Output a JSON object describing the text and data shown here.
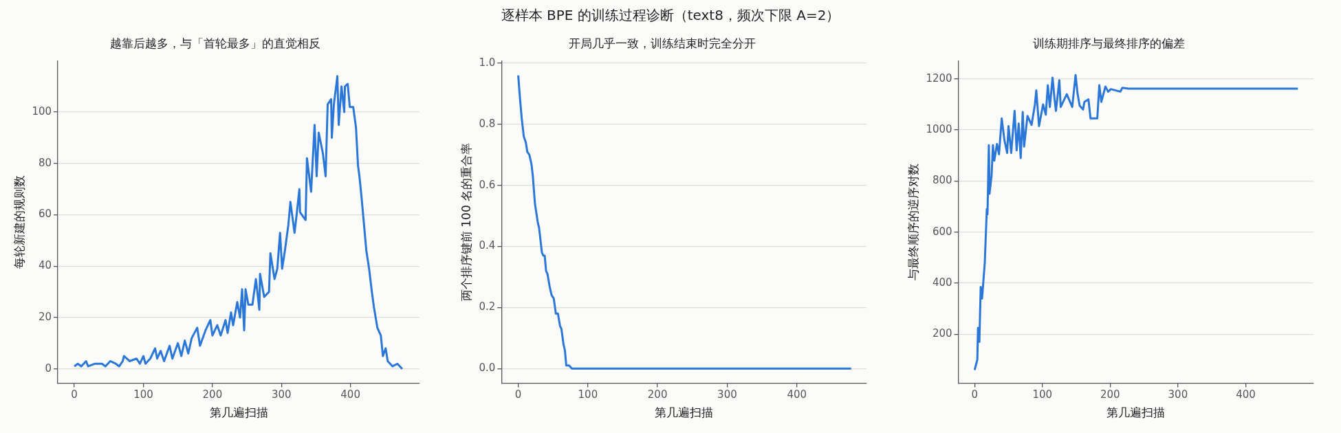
{
  "chart_data": [
    {
      "type": "line",
      "title": "越靠后越多，与「首轮最多」的直觉相反",
      "annotations": [
        "逐样本 BPE 的训练过程诊断（text8，频次下限 A=2）"
      ],
      "xlabel": "第几遍扫描",
      "ylabel": "每轮新建的规则数",
      "xlim": [
        -24,
        500
      ],
      "ylim": [
        -5.6,
        120
      ],
      "xticks": [
        0,
        100,
        200,
        300,
        400
      ],
      "yticks": [
        0,
        20,
        40,
        60,
        80,
        100
      ],
      "grid": "y",
      "series": [
        {
          "color": "#2b77d8",
          "x": [
            0,
            5,
            10,
            17,
            20,
            30,
            40,
            45,
            52,
            60,
            65,
            70,
            72,
            80,
            90,
            95,
            100,
            103,
            110,
            117,
            120,
            125,
            130,
            138,
            142,
            150,
            155,
            160,
            165,
            170,
            178,
            182,
            190,
            197,
            200,
            207,
            212,
            219,
            222,
            227,
            230,
            236,
            240,
            243,
            246,
            248,
            252,
            258,
            263,
            268,
            269,
            275,
            282,
            284,
            290,
            294,
            298,
            301,
            305,
            310,
            313,
            319,
            322,
            326,
            327,
            335,
            337,
            343,
            348,
            351,
            354,
            360,
            364,
            367,
            372,
            373,
            376,
            381,
            383,
            387,
            391,
            392,
            396,
            399,
            404,
            408,
            411,
            413,
            416,
            420,
            423,
            427,
            431,
            434,
            439,
            444,
            447,
            451,
            454,
            461,
            468,
            475
          ],
          "values": [
            1,
            2,
            1,
            3,
            1,
            2,
            2,
            1,
            3,
            2,
            1,
            3,
            5,
            3,
            4,
            2,
            5,
            2,
            4,
            8,
            4,
            7,
            3,
            9,
            4,
            10,
            5,
            11,
            6,
            12,
            16,
            9,
            15,
            19,
            13,
            17,
            13,
            19,
            14,
            22,
            17,
            26,
            20,
            31,
            15,
            31,
            25,
            25,
            35,
            23,
            37,
            28,
            30,
            45,
            35,
            39,
            53,
            39,
            46,
            56,
            65,
            53,
            60,
            70,
            61,
            58,
            82,
            69,
            95,
            75,
            92,
            84,
            75,
            103,
            105,
            90,
            103,
            114,
            95,
            110,
            100,
            110,
            111,
            102,
            102,
            94,
            79,
            75,
            67,
            55,
            46,
            39,
            30,
            24,
            16,
            13,
            5,
            8,
            3,
            1,
            2,
            0
          ]
        }
      ]
    },
    {
      "type": "line",
      "title": "开局几乎一致，训练结束时完全分开",
      "xlabel": "第几遍扫描",
      "ylabel": "两个排序键前 100 名的重合率",
      "xlim": [
        -24,
        500
      ],
      "ylim": [
        -0.048,
        1.008
      ],
      "xticks": [
        0,
        100,
        200,
        300,
        400
      ],
      "yticks": [
        {
          "value": 0,
          "label": "0.0"
        },
        {
          "value": 0.2,
          "label": "0.2"
        },
        {
          "value": 0.4,
          "label": "0.4"
        },
        {
          "value": 0.6,
          "label": "0.6"
        },
        {
          "value": 0.8,
          "label": "0.8"
        },
        {
          "value": 1,
          "label": "1.0"
        }
      ],
      "grid": "y",
      "series": [
        {
          "color": "#2b77d8",
          "x": [
            0,
            2,
            5,
            8,
            11,
            13,
            16,
            19,
            21,
            24,
            28,
            30,
            34,
            36,
            38,
            40,
            42,
            45,
            48,
            51,
            54,
            57,
            60,
            62,
            65,
            67,
            69,
            73,
            77,
            478
          ],
          "values": [
            0.96,
            0.9,
            0.82,
            0.76,
            0.74,
            0.71,
            0.7,
            0.67,
            0.63,
            0.54,
            0.48,
            0.46,
            0.38,
            0.37,
            0.37,
            0.32,
            0.31,
            0.27,
            0.24,
            0.23,
            0.18,
            0.18,
            0.14,
            0.13,
            0.08,
            0.06,
            0.01,
            0.01,
            0,
            0
          ]
        }
      ]
    },
    {
      "type": "line",
      "title": "训练期排序与最终排序的偏差",
      "xlabel": "第几遍扫描",
      "ylabel": "与最终顺序的逆序对数",
      "xlim": [
        -24,
        500
      ],
      "ylim": [
        8,
        1271
      ],
      "xticks": [
        0,
        100,
        200,
        300,
        400
      ],
      "yticks": [
        200,
        400,
        600,
        800,
        1000,
        1200
      ],
      "grid": "y",
      "series": [
        {
          "color": "#2b77d8",
          "x": [
            0,
            4,
            5,
            7,
            9,
            11,
            15,
            18,
            19,
            21,
            22,
            25,
            27,
            29,
            33,
            36,
            40,
            44,
            48,
            50,
            54,
            59,
            62,
            65,
            68,
            71,
            73,
            78,
            84,
            89,
            91,
            95,
            101,
            105,
            108,
            111,
            115,
            118,
            120,
            125,
            127,
            136,
            144,
            149,
            152,
            155,
            160,
            162,
            168,
            171,
            181,
            184,
            187,
            193,
            197,
            201,
            215,
            218,
            227,
            477
          ],
          "values": [
            60,
            100,
            225,
            170,
            385,
            340,
            480,
            690,
            670,
            940,
            750,
            820,
            940,
            880,
            945,
            905,
            1045,
            960,
            910,
            1015,
            910,
            1075,
            920,
            1025,
            890,
            1070,
            935,
            1055,
            1020,
            1100,
            1155,
            1015,
            1100,
            1060,
            1175,
            1090,
            1205,
            1120,
            1075,
            1195,
            1090,
            1140,
            1090,
            1215,
            1140,
            1095,
            1080,
            1110,
            1120,
            1045,
            1045,
            1175,
            1110,
            1170,
            1150,
            1160,
            1150,
            1165,
            1162,
            1162
          ]
        }
      ]
    }
  ]
}
